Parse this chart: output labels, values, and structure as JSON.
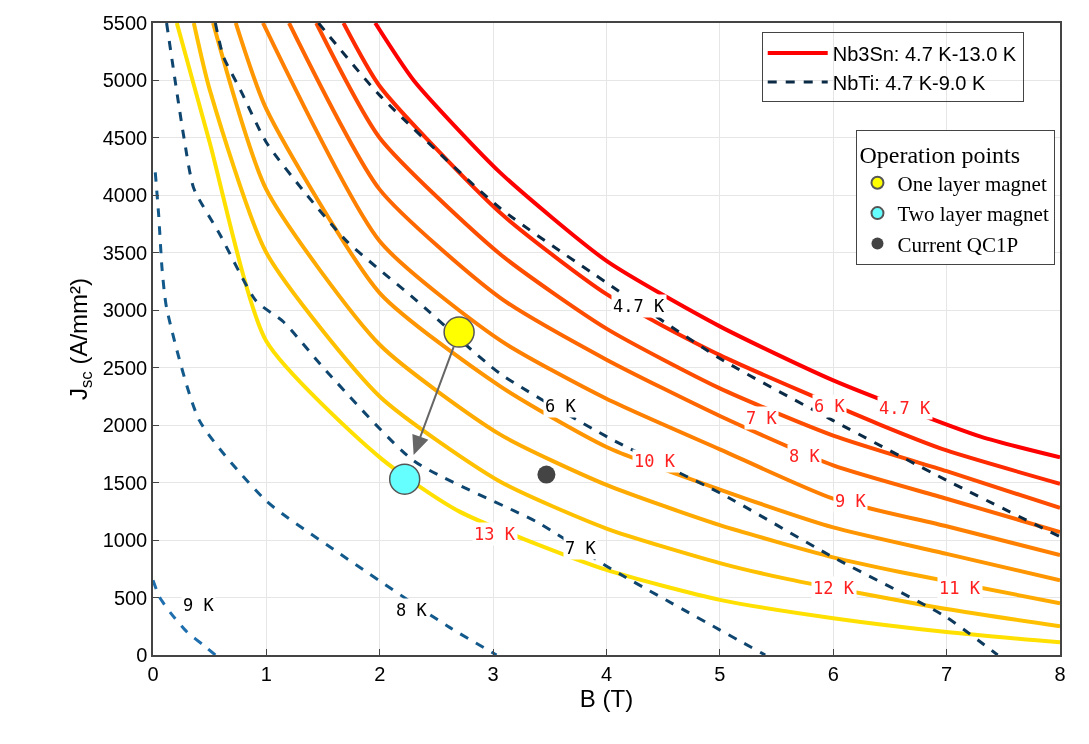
{
  "chart_data": {
    "type": "line",
    "xlabel": "B (T)",
    "ylabel": "J$_{sc}$ (A/mm²)",
    "legend_title": "Operation points",
    "xlim": [
      0,
      8
    ],
    "ylim": [
      0,
      5500
    ],
    "xticks": [
      0,
      1,
      2,
      3,
      4,
      5,
      6,
      7,
      8
    ],
    "yticks": [
      0,
      500,
      1000,
      1500,
      2000,
      2500,
      3000,
      3500,
      4000,
      4500,
      5000,
      5500
    ],
    "grid": true,
    "legend": "top right",
    "marker": "none",
    "line_style": "solid",
    "series": [
      {
        "name": "Nb3Sn: 4.7 K-13.0 K",
        "color": "#ff0000",
        "x": [
          1.96,
          2.3,
          3.06,
          4,
          5,
          6,
          7.3,
          8
        ],
        "values": [
          5500,
          5000,
          4200,
          3430,
          2860,
          2390,
          1900,
          1720
        ]
      },
      {
        "color": "#ff2a00",
        "x": [
          1.68,
          2,
          3.06,
          4,
          5,
          6.4,
          7,
          8
        ],
        "values": [
          5500,
          4950,
          3850,
          3140,
          2610,
          2010,
          1780,
          1490
        ]
      },
      {
        "color": "#ff4d00",
        "x": [
          1.44,
          2,
          3.06,
          4,
          5,
          6,
          7,
          8
        ],
        "values": [
          5500,
          4500,
          3490,
          2840,
          2320,
          1910,
          1600,
          1280
        ]
      },
      {
        "color": "#ff6600",
        "x": [
          1.2,
          2,
          3.06,
          4,
          5,
          6,
          7,
          8
        ],
        "values": [
          5500,
          4050,
          3110,
          2570,
          2080,
          1650,
          1360,
          1070
        ]
      },
      {
        "color": "#ff8000",
        "x": [
          0.97,
          2,
          3.06,
          4,
          5,
          6,
          7,
          8
        ],
        "values": [
          5500,
          3600,
          2740,
          2230,
          1790,
          1360,
          1120,
          870
        ]
      },
      {
        "color": "#ff9500",
        "x": [
          0.73,
          1,
          2,
          3.06,
          4,
          5,
          6,
          7,
          8
        ],
        "values": [
          5500,
          4750,
          3150,
          2340,
          1810,
          1440,
          1110,
          880,
          650
        ]
      },
      {
        "color": "#ffaa00",
        "x": [
          0.53,
          1,
          2,
          3.06,
          4,
          5,
          6,
          6.6,
          8
        ],
        "values": [
          5500,
          4050,
          2700,
          1920,
          1480,
          1130,
          850,
          720,
          450
        ]
      },
      {
        "color": "#ffc000",
        "x": [
          0.36,
          0.5,
          1,
          2,
          3.06,
          4,
          5,
          5.6,
          7,
          8
        ],
        "values": [
          5500,
          4920,
          3500,
          2250,
          1510,
          1100,
          800,
          660,
          400,
          250
        ]
      },
      {
        "color": "#ffe000",
        "x": [
          0.21,
          0.5,
          1,
          2,
          2.7,
          4,
          5,
          6,
          7,
          8
        ],
        "values": [
          5500,
          4460,
          2730,
          1720,
          1250,
          740,
          480,
          320,
          200,
          110
        ]
      },
      {
        "name": "NbTi: 4.7 K-9.0 K",
        "color": "#0a2a45",
        "line_style": "dashed",
        "x": [
          1.46,
          2,
          3.06,
          4,
          5,
          6,
          7,
          8
        ],
        "values": [
          5500,
          4870,
          3890,
          3240,
          2580,
          2040,
          1520,
          1030
        ]
      },
      {
        "color": "#0d3a5c",
        "line_style": "dashed",
        "x": [
          0.55,
          0.62,
          0.77,
          1,
          1.36,
          1.71,
          2.33,
          3.06,
          4.04,
          5.02,
          6,
          6.98,
          7.45
        ],
        "values": [
          5500,
          5210,
          4920,
          4460,
          4000,
          3600,
          3080,
          2450,
          1880,
          1400,
          850,
          340,
          0
        ]
      },
      {
        "color": "#0f4670",
        "line_style": "dashed",
        "x": [
          0.12,
          0.27,
          0.36,
          0.59,
          0.91,
          1.15,
          1.53,
          2.3,
          3.4,
          4.04,
          5.4
        ],
        "values": [
          5500,
          4520,
          4060,
          3660,
          3080,
          2900,
          2470,
          1690,
          1150,
          750,
          0
        ]
      },
      {
        "color": "#135a8c",
        "line_style": "dashed",
        "x": [
          0.02,
          0.05,
          0.08,
          0.12,
          0.41,
          1.0,
          1.65,
          2.6,
          3.03
        ],
        "values": [
          4200,
          3830,
          3360,
          3020,
          2040,
          1340,
          880,
          250,
          0
        ]
      },
      {
        "color": "#1f6fae",
        "line_style": "dashed",
        "x": [
          0.0,
          0.06,
          0.16,
          0.3,
          0.44,
          0.55
        ],
        "values": [
          650,
          500,
          360,
          200,
          90,
          0
        ]
      },
      {
        "type": "scatter",
        "name": "One layer magnet",
        "color": "#ffff00",
        "marker": "circle",
        "x": [
          2.7
        ],
        "values": [
          2810
        ]
      },
      {
        "type": "scatter",
        "name": "Two layer magnet",
        "color": "#66ffff",
        "marker": "circle",
        "x": [
          2.22
        ],
        "values": [
          1530
        ]
      },
      {
        "type": "scatter",
        "name": "Current QC1P",
        "color": "#444444",
        "marker": "circle",
        "x": [
          3.47
        ],
        "values": [
          1570
        ]
      }
    ],
    "annotations": [
      {
        "text": "4.7 K",
        "x": 6.63,
        "y": 2150
      },
      {
        "text": "6 K",
        "x": 5.97,
        "y": 2165
      },
      {
        "text": "7 K",
        "x": 5.37,
        "y": 2061
      },
      {
        "text": "8 K",
        "x": 5.75,
        "y": 1732
      },
      {
        "text": "9 K",
        "x": 6.15,
        "y": 1343
      },
      {
        "text": "10 K",
        "x": 4.43,
        "y": 1689
      },
      {
        "text": "11 K",
        "x": 7.12,
        "y": 580
      },
      {
        "text": "12 K",
        "x": 6.01,
        "y": 580
      },
      {
        "text": "13 K",
        "x": 3.02,
        "y": 1057
      },
      {
        "text": "4.7 K",
        "x": 4.29,
        "y": 3040
      },
      {
        "text": "6 K",
        "x": 3.59,
        "y": 2165
      },
      {
        "text": "7 K",
        "x": 3.77,
        "y": 927
      },
      {
        "text": "8 K",
        "x": 2.28,
        "y": 390
      },
      {
        "text": "9 K",
        "x": 0.4,
        "y": 433
      }
    ]
  }
}
